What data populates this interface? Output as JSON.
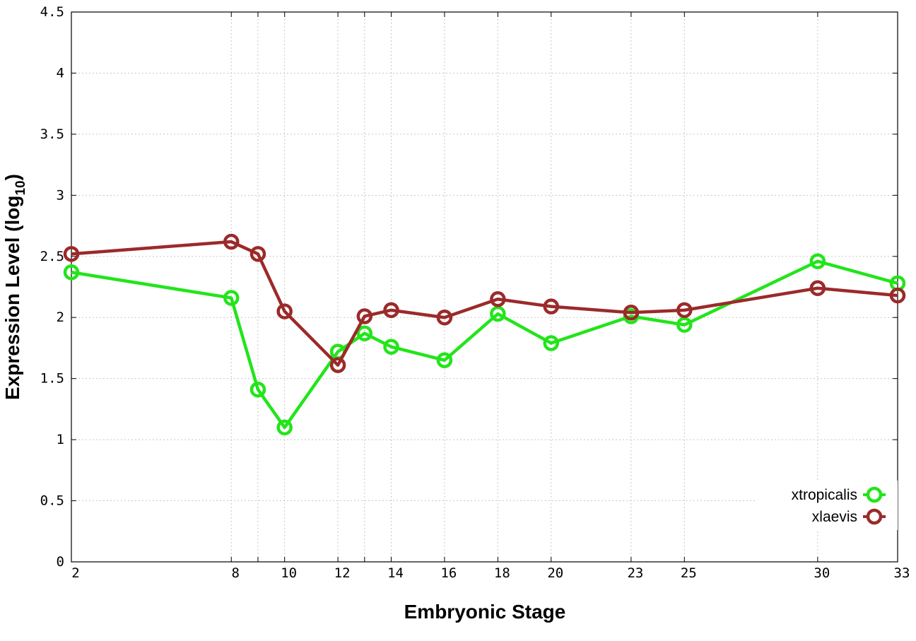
{
  "chart_data": {
    "type": "line",
    "xlabel": "Embryonic Stage",
    "ylabel_main": "Expression Level (log",
    "ylabel_sub": "10",
    "ylabel_close": ")",
    "xlim": [
      2,
      33
    ],
    "ylim": [
      0,
      4.5
    ],
    "yticks": [
      0,
      0.5,
      1,
      1.5,
      2,
      2.5,
      3,
      3.5,
      4,
      4.5
    ],
    "ytick_labels": [
      "0",
      "0.5",
      "1",
      "1.5",
      "2",
      "2.5",
      "3",
      "3.5",
      "4",
      "4.5"
    ],
    "x": [
      2,
      8,
      9,
      10,
      12,
      13,
      14,
      16,
      18,
      20,
      23,
      25,
      30,
      33
    ],
    "xtick_labels": [
      "2",
      "8",
      "",
      "10",
      "12",
      "",
      "14",
      "16",
      "18",
      "20",
      "23",
      "25",
      "30",
      "33"
    ],
    "grid": true,
    "legend_position": "bottom-right",
    "series": [
      {
        "name": "xtropicalis",
        "color": "#22e51a",
        "marker": "open-circle",
        "values": [
          2.37,
          2.16,
          1.41,
          1.1,
          1.72,
          1.87,
          1.76,
          1.65,
          2.03,
          1.79,
          2.01,
          1.94,
          2.46,
          2.28
        ]
      },
      {
        "name": "xlaevis",
        "color": "#9b2a2a",
        "marker": "open-circle",
        "values": [
          2.52,
          2.62,
          2.52,
          2.05,
          1.61,
          2.01,
          2.06,
          2.0,
          2.15,
          2.09,
          2.04,
          2.06,
          2.24,
          2.18
        ]
      }
    ]
  }
}
